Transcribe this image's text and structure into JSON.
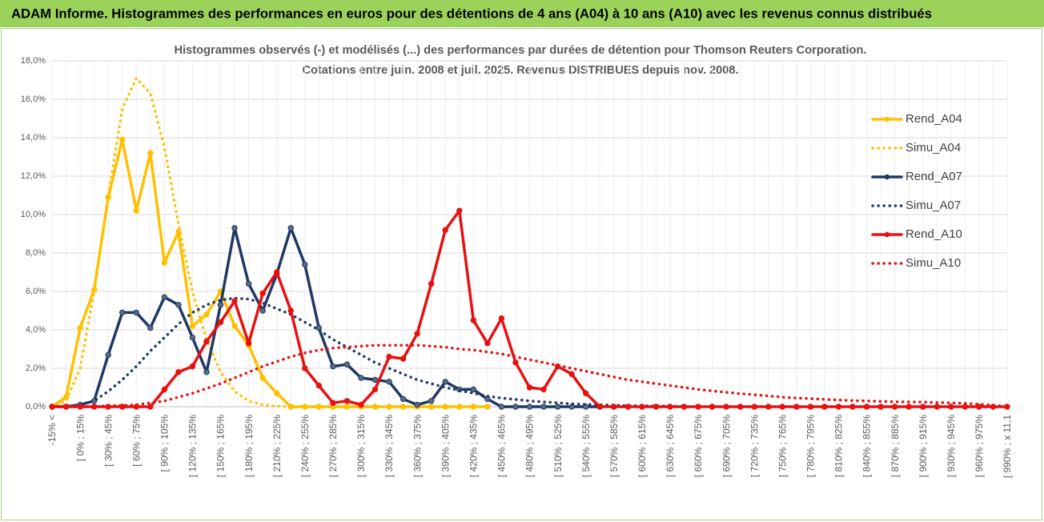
{
  "header": "ADAM Informe. Histogrammes des performances en euros pour des détentions de 4 ans (A04) à 10 ans (A10) avec les revenus connus distribués",
  "chart_data": {
    "type": "line",
    "title": "Histogrammes observés (-) et modélisés (...) des performances par durées de détention pour Thomson Reuters Corporation.",
    "subtitle": "Cotations entre juin. 2008 et juil. 2025. Revenus DISTRIBUES depuis nov. 2008.",
    "categories": [
      "-15% <",
      null,
      "[ 0% ; 15%",
      null,
      "[ 30% ; 45%",
      null,
      "[ 60% ; 75%",
      null,
      "[ 90% ; 105%",
      null,
      "[ 120% ; 135%",
      null,
      "[ 150% ; 165%",
      null,
      "[ 180% ; 195%",
      null,
      "[ 210% ; 225%",
      null,
      "[ 240% ; 255%",
      null,
      "[ 270% ; 285%",
      null,
      "[ 300% ; 315%",
      null,
      "[ 330% ; 345%",
      null,
      "[ 360% ; 375%",
      null,
      "[ 390% ; 405%",
      null,
      "[ 420% ; 435%",
      null,
      "[ 450% ; 465%",
      null,
      "[ 480% ; 495%",
      null,
      "[ 510% ; 525%",
      null,
      "[ 540% ; 555%",
      null,
      "[ 570% ; 585%",
      null,
      "[ 600% ; 615%",
      null,
      "[ 630% ; 645%",
      null,
      "[ 660% ; 675%",
      null,
      "[ 690% ; 705%",
      null,
      "[ 720% ; 735%",
      null,
      "[ 750% ; 765%",
      null,
      "[ 780% ; 795%",
      null,
      "[ 810% ; 825%",
      null,
      "[ 840% ; 855%",
      null,
      "[ 870% ; 885%",
      null,
      "[ 900% ; 915%",
      null,
      "[ 930% ; 945%",
      null,
      "[ 960% ; 975%",
      null,
      "[ 990% ; x 11,1"
    ],
    "series": [
      {
        "name": "Rend_A04",
        "color": "#ffc000",
        "markers": true,
        "dash": "solid",
        "values": [
          0,
          0.5,
          4.1,
          6.1,
          10.9,
          13.9,
          10.2,
          13.2,
          7.5,
          9.1,
          4.2,
          4.8,
          6.0,
          4.2,
          3.2,
          1.5,
          0.7,
          0,
          0,
          0,
          0,
          0,
          0,
          0,
          0,
          0,
          0,
          0,
          0,
          0,
          0,
          0,
          null,
          null,
          null,
          null,
          null,
          null,
          null,
          null,
          null,
          null,
          null,
          null,
          null,
          null,
          null,
          null,
          null,
          null,
          null,
          null,
          null,
          null,
          null,
          null,
          null,
          null,
          null,
          null,
          null,
          null,
          null,
          null,
          null,
          null,
          null,
          null,
          null
        ]
      },
      {
        "name": "Simu_A04",
        "color": "#ffc000",
        "markers": false,
        "dash": "dotted",
        "values": [
          0,
          0.3,
          2,
          6,
          11,
          15.5,
          17.1,
          16.3,
          13.5,
          9.5,
          6,
          3.5,
          1.8,
          0.8,
          0.3,
          0.1,
          0.03,
          0,
          0,
          0,
          0,
          0,
          0,
          0,
          0,
          0,
          0,
          0,
          0,
          0,
          0,
          0,
          null,
          null,
          null,
          null,
          null,
          null,
          null,
          null,
          null,
          null,
          null,
          null,
          null,
          null,
          null,
          null,
          null,
          null,
          null,
          null,
          null,
          null,
          null,
          null,
          null,
          null,
          null,
          null,
          null,
          null,
          null,
          null,
          null,
          null,
          null,
          null,
          null
        ]
      },
      {
        "name": "Rend_A07",
        "color": "#1f3864",
        "markers": true,
        "dash": "solid",
        "values": [
          0,
          0,
          0.1,
          0.3,
          2.7,
          4.9,
          4.9,
          4.1,
          5.7,
          5.3,
          3.6,
          1.8,
          5.3,
          9.3,
          6.4,
          5.0,
          6.9,
          9.3,
          7.4,
          4.1,
          2.1,
          2.2,
          1.5,
          1.4,
          1.3,
          0.4,
          0.1,
          0.3,
          1.3,
          0.9,
          0.9,
          0.4,
          0,
          0,
          0,
          0,
          0,
          0,
          0,
          0,
          null,
          null,
          null,
          null,
          null,
          null,
          null,
          null,
          null,
          null,
          null,
          null,
          null,
          null,
          null,
          null,
          null,
          null,
          null,
          null,
          null,
          null,
          null,
          null,
          null,
          null,
          null,
          null,
          null
        ]
      },
      {
        "name": "Simu_A07",
        "color": "#1f3864",
        "markers": false,
        "dash": "dotted",
        "values": [
          0,
          0.03,
          0.1,
          0.3,
          0.8,
          1.4,
          2.1,
          2.9,
          3.6,
          4.3,
          4.9,
          5.3,
          5.55,
          5.65,
          5.6,
          5.4,
          5.1,
          4.8,
          4.4,
          4.0,
          3.5,
          3.1,
          2.7,
          2.3,
          2.0,
          1.7,
          1.4,
          1.2,
          1.0,
          0.85,
          0.7,
          0.55,
          0.45,
          0.38,
          0.3,
          0.25,
          0.2,
          0.15,
          0.12,
          0.1,
          0.08,
          0.06,
          0.05,
          0.04,
          0.03,
          0.02,
          null,
          null,
          null,
          null,
          null,
          null,
          null,
          null,
          null,
          null,
          null,
          null,
          null,
          null,
          null,
          null,
          null,
          null,
          null,
          null,
          null,
          null,
          null
        ]
      },
      {
        "name": "Rend_A10",
        "color": "#e81010",
        "markers": true,
        "dash": "solid",
        "values": [
          0,
          0,
          0,
          0,
          0,
          0,
          0,
          0,
          0.9,
          1.8,
          2.1,
          3.4,
          4.4,
          5.5,
          3.3,
          5.9,
          7.0,
          5.0,
          2.0,
          1.1,
          0.2,
          0.3,
          0.1,
          0.9,
          2.6,
          2.5,
          3.8,
          6.4,
          9.2,
          10.2,
          4.5,
          3.3,
          4.6,
          2.3,
          1.0,
          0.9,
          2.1,
          1.7,
          0.7,
          0,
          0,
          0,
          0,
          0,
          0,
          0,
          0,
          0,
          0,
          0,
          0,
          0,
          0,
          0,
          0,
          0,
          0,
          0,
          0,
          0,
          0,
          0,
          0,
          0,
          0,
          0,
          0,
          0,
          0
        ]
      },
      {
        "name": "Simu_A10",
        "color": "#e81010",
        "markers": false,
        "dash": "dotted",
        "values": [
          0,
          0,
          0,
          0,
          0.05,
          0.07,
          0.1,
          0.2,
          0.3,
          0.5,
          0.7,
          0.95,
          1.2,
          1.5,
          1.8,
          2.1,
          2.35,
          2.6,
          2.8,
          2.95,
          3.05,
          3.1,
          3.15,
          3.2,
          3.2,
          3.2,
          3.2,
          3.15,
          3.1,
          3.0,
          2.95,
          2.85,
          2.75,
          2.6,
          2.45,
          2.3,
          2.15,
          2.0,
          1.85,
          1.7,
          1.55,
          1.4,
          1.3,
          1.2,
          1.1,
          1.0,
          0.9,
          0.82,
          0.75,
          0.68,
          0.62,
          0.56,
          0.5,
          0.45,
          0.42,
          0.38,
          0.35,
          0.32,
          0.3,
          0.28,
          0.26,
          0.25,
          0.24,
          0.22,
          0.2,
          0.17,
          0.13,
          0.08,
          0
        ]
      }
    ],
    "ylim": [
      0,
      18
    ],
    "yticks": [
      {
        "value": 0,
        "label": "0,0%"
      },
      {
        "value": 2,
        "label": "2,0%"
      },
      {
        "value": 4,
        "label": "4,0%"
      },
      {
        "value": 6,
        "label": "6,0%"
      },
      {
        "value": 8,
        "label": "8,0%"
      },
      {
        "value": 10,
        "label": "10,0%"
      },
      {
        "value": 12,
        "label": "12,0%"
      },
      {
        "value": 14,
        "label": "14,0%"
      },
      {
        "value": 16,
        "label": "16,0%"
      },
      {
        "value": 18,
        "label": "18,0%"
      }
    ],
    "grid": true,
    "legend": "right"
  }
}
